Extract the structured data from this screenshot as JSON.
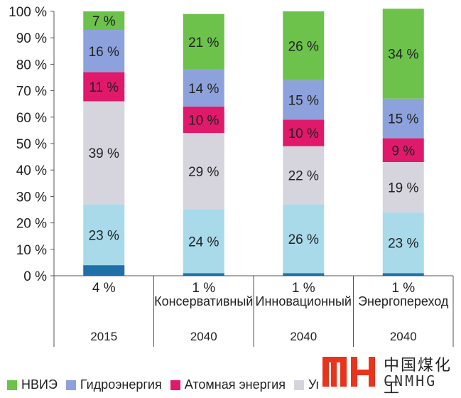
{
  "chart_data": {
    "type": "bar",
    "stacked": true,
    "ylim": [
      0,
      100
    ],
    "yticks": [
      "0 %",
      "10 %",
      "20 %",
      "30 %",
      "40 %",
      "50 %",
      "60 %",
      "70 %",
      "80 %",
      "90 %",
      "100 %"
    ],
    "categories": [
      {
        "scenario": "",
        "year": "2015"
      },
      {
        "scenario": "Консервативный",
        "year": "2040"
      },
      {
        "scenario": "Инновационный",
        "year": "2040"
      },
      {
        "scenario": "Энергопереход",
        "year": "2040"
      }
    ],
    "series": [
      {
        "name": "",
        "color": "#1f6fa8",
        "values": [
          4,
          1,
          1,
          1
        ],
        "labels": [
          "4 %",
          "1 %",
          "1 %",
          "1 %"
        ]
      },
      {
        "name": "",
        "color": "#a8daea",
        "values": [
          23,
          24,
          26,
          23
        ],
        "labels": [
          "23 %",
          "24 %",
          "26 %",
          "23 %"
        ]
      },
      {
        "name": "Уголь",
        "color": "#d6d5de",
        "values": [
          39,
          29,
          22,
          19
        ],
        "labels": [
          "39 %",
          "29 %",
          "22 %",
          "19 %"
        ]
      },
      {
        "name": "Атомная энергия",
        "color": "#e0196b",
        "values": [
          11,
          10,
          10,
          9
        ],
        "labels": [
          "11 %",
          "10 %",
          "10 %",
          "9 %"
        ]
      },
      {
        "name": "Гидроэнергия",
        "color": "#8da2dc",
        "values": [
          16,
          14,
          15,
          15
        ],
        "labels": [
          "16 %",
          "14 %",
          "15 %",
          "15 %"
        ]
      },
      {
        "name": "НВИЭ",
        "color": "#6cc24a",
        "values": [
          7,
          21,
          26,
          34
        ],
        "labels": [
          "7 %",
          "21 %",
          "26 %",
          "34 %"
        ]
      }
    ]
  },
  "legend": {
    "items": [
      {
        "label": "НВИЭ",
        "color": "#6cc24a"
      },
      {
        "label": "Гидроэнергия",
        "color": "#8da2dc"
      },
      {
        "label": "Атомная энергия",
        "color": "#e0196b"
      },
      {
        "label": "Уголь",
        "color": "#d6d5de"
      }
    ]
  },
  "watermark": {
    "logo_text": "MH",
    "chinese": "中国煤化工",
    "english": "CNMHG",
    "logo_color": "#e8341c"
  }
}
